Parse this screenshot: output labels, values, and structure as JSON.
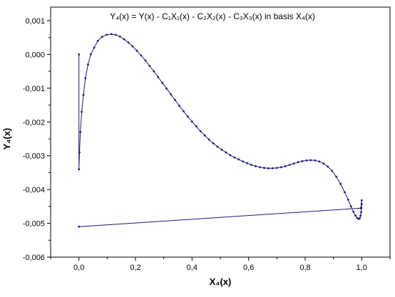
{
  "chart_data": {
    "type": "line",
    "title": "Y₄(x) = Y(x) - C₁X₁(x) - C₂X₂(x) - C₃X₃(x) in basis X₄(x)",
    "xlabel": "X₄(x)",
    "ylabel": "Y₄(x)",
    "xlim": [
      -0.1,
      1.1
    ],
    "ylim": [
      -0.006,
      0.0014
    ],
    "xticks": [
      0.0,
      0.2,
      0.4,
      0.6,
      0.8,
      1.0
    ],
    "xtick_labels": [
      "0,0",
      "0,2",
      "0,4",
      "0,6",
      "0,8",
      "1,0"
    ],
    "yticks": [
      0.001,
      0.0,
      -0.001,
      -0.002,
      -0.003,
      -0.004,
      -0.005,
      -0.006
    ],
    "ytick_labels": [
      "0,001",
      "0,000",
      "-0,001",
      "-0,002",
      "-0,003",
      "-0,004",
      "-0,005",
      "-0,006"
    ],
    "grid": false,
    "legend": "none",
    "series": [
      {
        "color": "#1a1a80",
        "marker": "dot",
        "x": [
          0.0,
          0.0,
          0.002,
          0.005,
          0.01,
          0.016,
          0.023,
          0.032,
          0.042,
          0.054,
          0.067,
          0.082,
          0.098,
          0.115,
          0.13,
          0.145,
          0.16,
          0.175,
          0.19,
          0.205,
          0.22,
          0.235,
          0.25,
          0.265,
          0.28,
          0.295,
          0.31,
          0.325,
          0.34,
          0.355,
          0.37,
          0.385,
          0.4,
          0.415,
          0.43,
          0.445,
          0.46,
          0.475,
          0.49,
          0.505,
          0.52,
          0.535,
          0.55,
          0.565,
          0.58,
          0.595,
          0.61,
          0.625,
          0.64,
          0.655,
          0.67,
          0.685,
          0.7,
          0.715,
          0.73,
          0.745,
          0.76,
          0.775,
          0.79,
          0.805,
          0.82,
          0.835,
          0.85,
          0.865,
          0.88,
          0.895,
          0.91,
          0.925,
          0.94,
          0.952,
          0.962,
          0.971,
          0.978,
          0.984,
          0.989,
          0.993,
          0.996,
          0.998,
          0.999,
          1.0,
          1.0,
          0.997,
          0.0
        ],
        "y": [
          0.0,
          -0.0034,
          -0.0029,
          -0.0023,
          -0.0017,
          -0.0012,
          -0.0007,
          -0.0003,
          0.0,
          0.0002,
          0.0004,
          0.00052,
          0.00058,
          0.0006,
          0.00058,
          0.00053,
          0.00045,
          0.00035,
          0.00024,
          0.00011,
          -3e-05,
          -0.00018,
          -0.00034,
          -0.0005,
          -0.00067,
          -0.00084,
          -0.00101,
          -0.00118,
          -0.00135,
          -0.00152,
          -0.00168,
          -0.00184,
          -0.00199,
          -0.00213,
          -0.00227,
          -0.0024,
          -0.00252,
          -0.00263,
          -0.00273,
          -0.00282,
          -0.0029,
          -0.00298,
          -0.00305,
          -0.00311,
          -0.00317,
          -0.00322,
          -0.00327,
          -0.00331,
          -0.00334,
          -0.00336,
          -0.00337,
          -0.00337,
          -0.00336,
          -0.00334,
          -0.00331,
          -0.00327,
          -0.00323,
          -0.00319,
          -0.00316,
          -0.00314,
          -0.00313,
          -0.00314,
          -0.00317,
          -0.00323,
          -0.00332,
          -0.00345,
          -0.00362,
          -0.00383,
          -0.00408,
          -0.0043,
          -0.0045,
          -0.00466,
          -0.00477,
          -0.00484,
          -0.00487,
          -0.00485,
          -0.00477,
          -0.00467,
          -0.00455,
          -0.00443,
          -0.00432,
          -0.00455,
          -0.0051
        ]
      }
    ]
  }
}
